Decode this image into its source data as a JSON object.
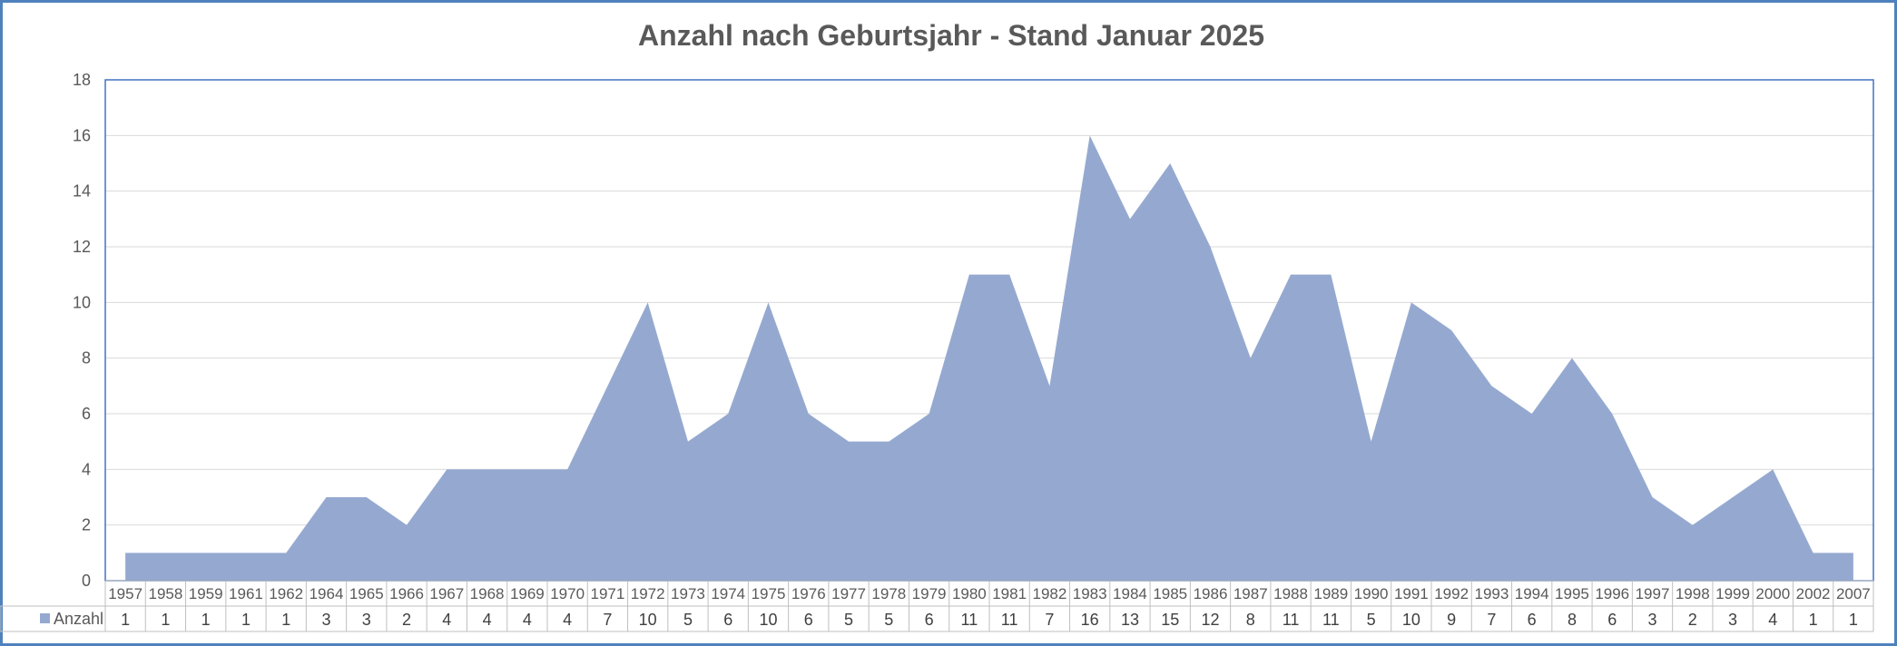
{
  "chart_data": {
    "type": "area",
    "title": "Anzahl nach Geburtsjahr - Stand Januar 2025",
    "xlabel": "",
    "ylabel": "",
    "ylim": [
      0,
      18
    ],
    "yticks": [
      0,
      2,
      4,
      6,
      8,
      10,
      12,
      14,
      16,
      18
    ],
    "grid": true,
    "legend": "data-table-left",
    "categories": [
      "1957",
      "1958",
      "1959",
      "1961",
      "1962",
      "1964",
      "1965",
      "1966",
      "1967",
      "1968",
      "1969",
      "1970",
      "1971",
      "1972",
      "1973",
      "1974",
      "1975",
      "1976",
      "1977",
      "1978",
      "1979",
      "1980",
      "1981",
      "1982",
      "1983",
      "1984",
      "1985",
      "1986",
      "1987",
      "1988",
      "1989",
      "1990",
      "1991",
      "1992",
      "1993",
      "1994",
      "1995",
      "1996",
      "1997",
      "1998",
      "1999",
      "2000",
      "2002",
      "2007"
    ],
    "series": [
      {
        "name": "Anzahl",
        "color": "#95a9d0",
        "values": [
          1,
          1,
          1,
          1,
          1,
          3,
          3,
          2,
          4,
          4,
          4,
          4,
          7,
          10,
          5,
          6,
          10,
          6,
          5,
          5,
          6,
          11,
          11,
          7,
          16,
          13,
          15,
          12,
          8,
          11,
          11,
          5,
          10,
          9,
          7,
          6,
          8,
          6,
          3,
          2,
          3,
          4,
          1,
          1
        ]
      }
    ]
  },
  "colors": {
    "frame": "#4f81bd",
    "plot_border": "#4472c4",
    "grid": "#d9d9d9",
    "area": "#95a9d0",
    "text": "#595959"
  }
}
